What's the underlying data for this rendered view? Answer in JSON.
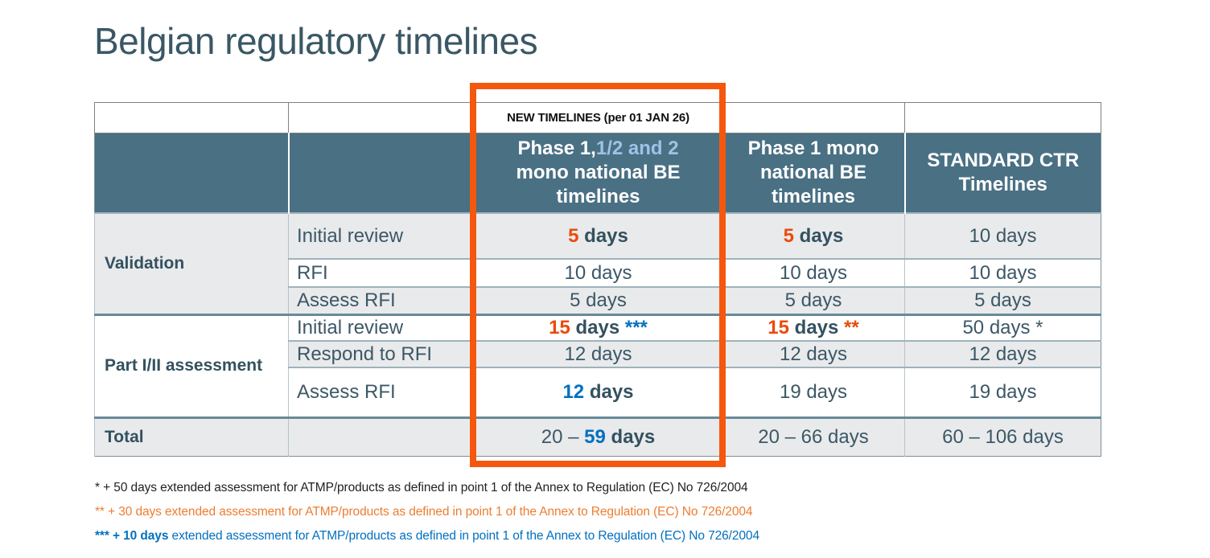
{
  "slide": {
    "title": "Belgian regulatory timelines"
  },
  "banner": {
    "label": "NEW TIMELINES (per 01 JAN 26)"
  },
  "colors": {
    "accent_orange": "#ea4b0c",
    "accent_blue": "#0070c0",
    "accent_light_blue": "#9dc3e6",
    "header_background": "#4a7084",
    "highlight_border": "#f4570e",
    "footnote_orange": "#ed7d31"
  },
  "table": {
    "col_headers": [
      {
        "parts": [
          {
            "t": "Phase 1,",
            "st": "white"
          },
          {
            "t": "1/2 and 2",
            "st": "lightblue"
          },
          {
            "t": "\nmono national BE timelines",
            "st": "white"
          }
        ]
      },
      {
        "parts": [
          {
            "t": "Phase 1 mono national BE timelines",
            "st": "white"
          }
        ]
      },
      {
        "parts": [
          {
            "t": "STANDARD CTR Timelines",
            "st": "white"
          }
        ]
      }
    ],
    "rows": [
      {
        "group": "Validation",
        "label": "Initial review",
        "cells": [
          [
            {
              "t": "5",
              "st": "orange"
            },
            {
              "t": " days",
              "st": "bold"
            }
          ],
          [
            {
              "t": "5",
              "st": "orange"
            },
            {
              "t": " days",
              "st": "bold"
            }
          ],
          [
            {
              "t": "10 days",
              "st": "plain"
            }
          ]
        ]
      },
      {
        "label": "RFI",
        "cells": [
          [
            {
              "t": "10 days",
              "st": "plain"
            }
          ],
          [
            {
              "t": "10 days",
              "st": "plain"
            }
          ],
          [
            {
              "t": "10 days",
              "st": "plain"
            }
          ]
        ]
      },
      {
        "label": "Assess RFI",
        "cells": [
          [
            {
              "t": "5 days",
              "st": "plain"
            }
          ],
          [
            {
              "t": "5 days",
              "st": "plain"
            }
          ],
          [
            {
              "t": "5 days",
              "st": "plain"
            }
          ]
        ]
      },
      {
        "group": "Part I/II assessment",
        "label": "Initial review",
        "cells": [
          [
            {
              "t": "15",
              "st": "orange"
            },
            {
              "t": " days ",
              "st": "bold"
            },
            {
              "t": "***",
              "st": "blue"
            }
          ],
          [
            {
              "t": "15",
              "st": "orange"
            },
            {
              "t": " days ",
              "st": "bold"
            },
            {
              "t": "**",
              "st": "orange"
            }
          ],
          [
            {
              "t": "50 days *",
              "st": "plain"
            }
          ]
        ]
      },
      {
        "label": "Respond to RFI",
        "cells": [
          [
            {
              "t": "12 days",
              "st": "plain"
            }
          ],
          [
            {
              "t": "12 days",
              "st": "plain"
            }
          ],
          [
            {
              "t": "12 days",
              "st": "plain"
            }
          ]
        ]
      },
      {
        "label": "Assess RFI",
        "cells": [
          [
            {
              "t": "12",
              "st": "blue"
            },
            {
              "t": " days",
              "st": "bold"
            }
          ],
          [
            {
              "t": "19 days",
              "st": "plain"
            }
          ],
          [
            {
              "t": "19 days",
              "st": "plain"
            }
          ]
        ]
      }
    ],
    "total_row": {
      "label": "Total",
      "cells": [
        [
          {
            "t": "20 – ",
            "st": "plain"
          },
          {
            "t": "59",
            "st": "blue"
          },
          {
            "t": " days",
            "st": "bold"
          }
        ],
        [
          {
            "t": "20 – 66 days",
            "st": "plain"
          }
        ],
        [
          {
            "t": "60 – 106 days",
            "st": "plain"
          }
        ]
      ]
    }
  },
  "footnotes": [
    {
      "runs": [
        {
          "t": "* + 50 days extended assessment for ATMP/products as defined in point 1 of the Annex to Regulation (EC) No 726/2004",
          "st": "fn-dark"
        }
      ]
    },
    {
      "runs": [
        {
          "t": "** + 30 days extended assessment for ATMP/products as defined in point 1 of the Annex to Regulation (EC) No 726/2004",
          "st": "fn-orange"
        }
      ]
    },
    {
      "runs": [
        {
          "t": "*** + 10 days",
          "st": "fn-blue-bold"
        },
        {
          "t": " extended assessment for ATMP/products as defined in point 1 of the Annex to Regulation (EC) No 726/2004",
          "st": "fn-blue"
        }
      ]
    }
  ]
}
